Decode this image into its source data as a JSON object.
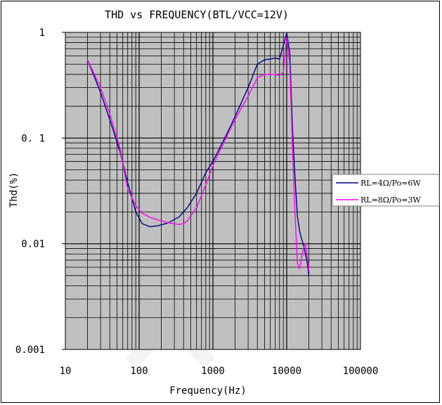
{
  "chart_data": {
    "type": "line",
    "title": "THD vs FREQUENCY(BTL/VCC=12V)",
    "xlabel": "Frequency(Hz)",
    "ylabel": "Thd(%)",
    "xscale": "log",
    "yscale": "log",
    "xlim": [
      10,
      100000
    ],
    "ylim": [
      0.001,
      1
    ],
    "grid": true,
    "legend_position": "right",
    "x_ticks": [
      "10",
      "100",
      "1000",
      "10000",
      "100000"
    ],
    "y_ticks": [
      "0.001",
      "0.01",
      "0. 1",
      "1"
    ],
    "series": [
      {
        "name": "RL=4Ω/Po=6W",
        "color": "#000080",
        "x": [
          20,
          30,
          40,
          55,
          70,
          90,
          110,
          140,
          180,
          250,
          350,
          450,
          600,
          800,
          1000,
          1500,
          2000,
          3000,
          4000,
          5000,
          6000,
          7000,
          8000,
          9000,
          10000,
          11000,
          12000,
          13000,
          14000,
          15000,
          16000,
          17000,
          18000,
          19000,
          20000
        ],
        "values": [
          0.55,
          0.27,
          0.15,
          0.075,
          0.038,
          0.02,
          0.0155,
          0.0145,
          0.0148,
          0.0158,
          0.018,
          0.022,
          0.03,
          0.047,
          0.06,
          0.105,
          0.16,
          0.3,
          0.5,
          0.55,
          0.56,
          0.57,
          0.56,
          0.75,
          0.98,
          0.65,
          0.12,
          0.04,
          0.018,
          0.013,
          0.011,
          0.0095,
          0.008,
          0.0065,
          0.005
        ]
      },
      {
        "name": "RL=8Ω/Po=3W",
        "color": "#ff00ff",
        "x": [
          20,
          30,
          40,
          55,
          70,
          90,
          110,
          140,
          180,
          250,
          350,
          400,
          450,
          600,
          800,
          1000,
          1500,
          2000,
          3000,
          4000,
          5000,
          6000,
          7000,
          8000,
          9000,
          10000,
          11000,
          12000,
          13000,
          14000,
          15000,
          16000,
          17000,
          18000,
          19000,
          20000
        ],
        "values": [
          0.55,
          0.3,
          0.17,
          0.08,
          0.033,
          0.023,
          0.0195,
          0.0178,
          0.0168,
          0.0158,
          0.0152,
          0.0155,
          0.0165,
          0.022,
          0.036,
          0.055,
          0.1,
          0.15,
          0.25,
          0.37,
          0.4,
          0.4,
          0.4,
          0.39,
          0.42,
          0.9,
          0.5,
          0.08,
          0.018,
          0.0065,
          0.0058,
          0.0075,
          0.0092,
          0.01,
          0.0075,
          0.0055
        ]
      }
    ]
  }
}
